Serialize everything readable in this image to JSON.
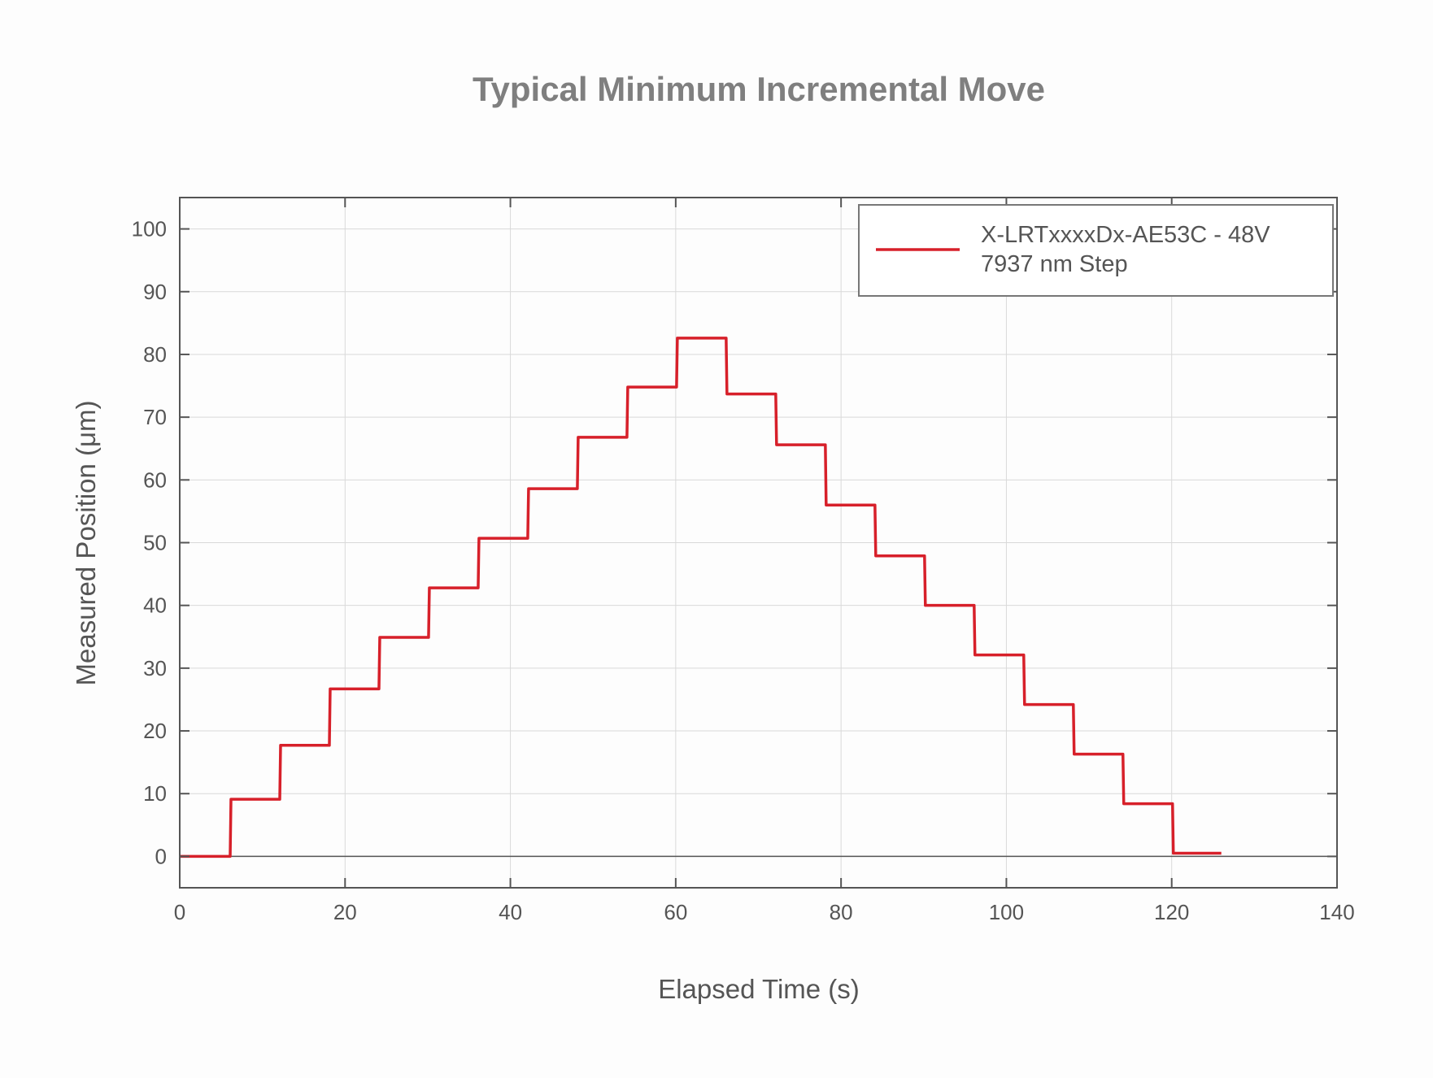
{
  "chart_data": {
    "type": "line",
    "title": "Typical Minimum Incremental Move",
    "xlabel": "Elapsed Time (s)",
    "ylabel": "Measured Position (μm)",
    "xlim": [
      0,
      140
    ],
    "ylim": [
      -5,
      105
    ],
    "xticks": [
      0,
      20,
      40,
      60,
      80,
      100,
      120,
      140
    ],
    "yticks": [
      0,
      10,
      20,
      30,
      40,
      50,
      60,
      70,
      80,
      90,
      100
    ],
    "grid": true,
    "legend_position": "top-right",
    "series": [
      {
        "name": "X-LRTxxxxDx-AE53C - 48V",
        "name_line2": "7937 nm Step",
        "color": "#d7202a",
        "step_times": [
          0,
          6.1,
          12.1,
          18.1,
          24.1,
          30.1,
          36.1,
          42.1,
          48.1,
          54.1,
          60.1,
          66.1,
          72.1,
          78.1,
          84.1,
          90.1,
          96.1,
          102.1,
          108.1,
          114.1,
          120.1
        ],
        "levels": [
          0,
          9.1,
          17.7,
          26.7,
          34.9,
          42.8,
          50.7,
          58.6,
          66.8,
          74.8,
          82.6,
          73.7,
          65.6,
          56.0,
          47.9,
          40.0,
          32.1,
          24.2,
          16.3,
          8.4,
          0.5
        ],
        "end_time": 126
      }
    ]
  }
}
